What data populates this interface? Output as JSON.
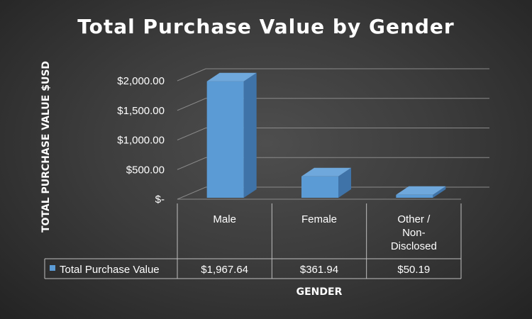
{
  "chart_data": {
    "type": "bar",
    "title": "Total Purchase Value by Gender",
    "xlabel": "GENDER",
    "ylabel": "TOTAL PURCHASE VALUE $USD",
    "categories": [
      [
        "Male"
      ],
      [
        "Female"
      ],
      [
        "Other /",
        "Non-",
        "Disclosed"
      ]
    ],
    "series": [
      {
        "name": "Total Purchase Value",
        "values": [
          1967.64,
          361.94,
          50.19
        ],
        "labels": [
          "$1,967.64",
          "$361.94",
          "$50.19"
        ]
      }
    ],
    "y_ticks": [
      {
        "value": 0,
        "label": "$-"
      },
      {
        "value": 500,
        "label": "$500.00"
      },
      {
        "value": 1000,
        "label": "$1,000.00"
      },
      {
        "value": 1500,
        "label": "$1,500.00"
      },
      {
        "value": 2000,
        "label": "$2,000.00"
      }
    ],
    "ylim": [
      0,
      2000
    ],
    "grid": true,
    "data_table": true,
    "legend": "in data table",
    "bar_color": "#5b9bd5",
    "bar_top_color": "#6fa8dc",
    "bar_side_color": "#3f73a8"
  }
}
